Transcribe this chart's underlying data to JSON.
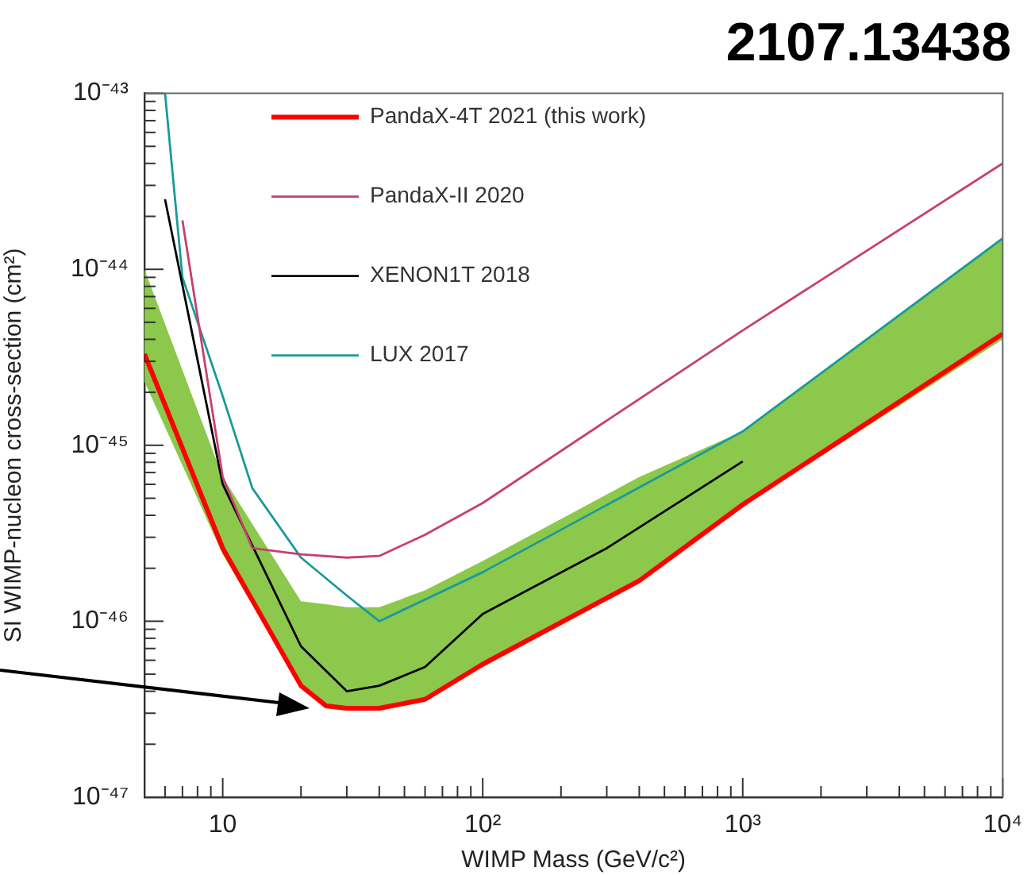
{
  "chart_data": {
    "type": "line",
    "title": "2107.13438",
    "xlabel": "WIMP Mass (GeV/c²)",
    "ylabel": "SI WIMP-nucleon cross-section (cm²)",
    "log": "xy",
    "grid": false,
    "legend": "top left",
    "marker": "none",
    "line_style": "solid",
    "xlim": [
      5,
      10000
    ],
    "ylim": [
      1e-47,
      1e-43
    ],
    "xticks": [
      {
        "value": 6,
        "label": null
      },
      {
        "value": 7,
        "label": null
      },
      {
        "value": 8,
        "label": null
      },
      {
        "value": 9,
        "label": null
      },
      {
        "value": 10,
        "label": "10"
      },
      {
        "value": 20,
        "label": null
      },
      {
        "value": 30,
        "label": null
      },
      {
        "value": 40,
        "label": null
      },
      {
        "value": 50,
        "label": null
      },
      {
        "value": 60,
        "label": null
      },
      {
        "value": 70,
        "label": null
      },
      {
        "value": 80,
        "label": null
      },
      {
        "value": 90,
        "label": null
      },
      {
        "value": 100,
        "label": "10²"
      },
      {
        "value": 200,
        "label": null
      },
      {
        "value": 300,
        "label": null
      },
      {
        "value": 400,
        "label": null
      },
      {
        "value": 500,
        "label": null
      },
      {
        "value": 600,
        "label": null
      },
      {
        "value": 700,
        "label": null
      },
      {
        "value": 800,
        "label": null
      },
      {
        "value": 900,
        "label": null
      },
      {
        "value": 1000,
        "label": "10³"
      },
      {
        "value": 2000,
        "label": null
      },
      {
        "value": 3000,
        "label": null
      },
      {
        "value": 4000,
        "label": null
      },
      {
        "value": 5000,
        "label": null
      },
      {
        "value": 6000,
        "label": null
      },
      {
        "value": 7000,
        "label": null
      },
      {
        "value": 8000,
        "label": null
      },
      {
        "value": 9000,
        "label": null
      },
      {
        "value": 10000,
        "label": "10⁴"
      }
    ],
    "yticks": [
      {
        "value": 1e-47,
        "label": "10⁻⁴⁷"
      },
      {
        "value": 2e-47,
        "label": null
      },
      {
        "value": 3e-47,
        "label": null
      },
      {
        "value": 4e-47,
        "label": null
      },
      {
        "value": 5e-47,
        "label": null
      },
      {
        "value": 6e-47,
        "label": null
      },
      {
        "value": 7e-47,
        "label": null
      },
      {
        "value": 8e-47,
        "label": null
      },
      {
        "value": 9e-47,
        "label": null
      },
      {
        "value": 1e-46,
        "label": "10⁻⁴⁶"
      },
      {
        "value": 2e-46,
        "label": null
      },
      {
        "value": 3e-46,
        "label": null
      },
      {
        "value": 4e-46,
        "label": null
      },
      {
        "value": 5e-46,
        "label": null
      },
      {
        "value": 6e-46,
        "label": null
      },
      {
        "value": 7e-46,
        "label": null
      },
      {
        "value": 8e-46,
        "label": null
      },
      {
        "value": 9e-46,
        "label": null
      },
      {
        "value": 1e-45,
        "label": "10⁻⁴⁵"
      },
      {
        "value": 2e-45,
        "label": null
      },
      {
        "value": 3e-45,
        "label": null
      },
      {
        "value": 4e-45,
        "label": null
      },
      {
        "value": 5e-45,
        "label": null
      },
      {
        "value": 6e-45,
        "label": null
      },
      {
        "value": 7e-45,
        "label": null
      },
      {
        "value": 8e-45,
        "label": null
      },
      {
        "value": 9e-45,
        "label": null
      },
      {
        "value": 1e-44,
        "label": "10⁻⁴⁴"
      },
      {
        "value": 2e-44,
        "label": null
      },
      {
        "value": 3e-44,
        "label": null
      },
      {
        "value": 4e-44,
        "label": null
      },
      {
        "value": 5e-44,
        "label": null
      },
      {
        "value": 6e-44,
        "label": null
      },
      {
        "value": 7e-44,
        "label": null
      },
      {
        "value": 8e-44,
        "label": null
      },
      {
        "value": 9e-44,
        "label": null
      },
      {
        "value": 1e-43,
        "label": "10⁻⁴³"
      }
    ],
    "series": [
      {
        "name": "PandaX-4T 2021 (this work)",
        "color": "#ff0000",
        "x": [
          5,
          10,
          20,
          25,
          30,
          40,
          60,
          100,
          400,
          1000,
          10000
        ],
        "values": [
          3.3e-45,
          2.6e-46,
          4.3e-47,
          3.3e-47,
          3.2e-47,
          3.2e-47,
          3.6e-47,
          5.7e-47,
          1.7e-46,
          4.6e-46,
          4.3e-45
        ],
        "lower": [
          2.3e-45,
          2.4e-46,
          4.2e-47,
          3.2e-47,
          3.1e-47,
          3.1e-47,
          3.5e-47,
          5.5e-47,
          1.65e-46,
          4.5e-46,
          4e-45
        ],
        "upper": [
          1e-44,
          6.6e-46,
          1.3e-46,
          1.25e-46,
          1.2e-46,
          1.2e-46,
          1.5e-46,
          2.2e-46,
          6.6e-46,
          1.2e-45,
          1.5e-44
        ]
      },
      {
        "name": "PandaX-II 2020",
        "color": "#c8406e",
        "x": [
          7,
          10,
          13,
          20,
          30,
          40,
          60,
          100,
          1000,
          10000
        ],
        "values": [
          1.9e-44,
          6.6e-46,
          2.6e-46,
          2.4e-46,
          2.3e-46,
          2.35e-46,
          3.1e-46,
          4.7e-46,
          4.5e-45,
          4e-44
        ]
      },
      {
        "name": "XENON1T 2018",
        "color": "#000000",
        "x": [
          6,
          10,
          20,
          30,
          40,
          60,
          100,
          300,
          1000
        ],
        "values": [
          2.5e-44,
          6e-46,
          7.2e-47,
          4e-47,
          4.3e-47,
          5.5e-47,
          1.1e-46,
          2.6e-46,
          8.1e-46
        ]
      },
      {
        "name": "LUX 2017",
        "color": "#1a9a9a",
        "x": [
          6,
          7,
          10,
          13,
          20,
          30,
          40,
          100,
          1000,
          10000
        ],
        "values": [
          1e-43,
          9e-45,
          1.9e-45,
          5.7e-46,
          2.3e-46,
          1.4e-46,
          1e-46,
          1.9e-46,
          1.2e-45,
          1.5e-44
        ]
      }
    ]
  }
}
